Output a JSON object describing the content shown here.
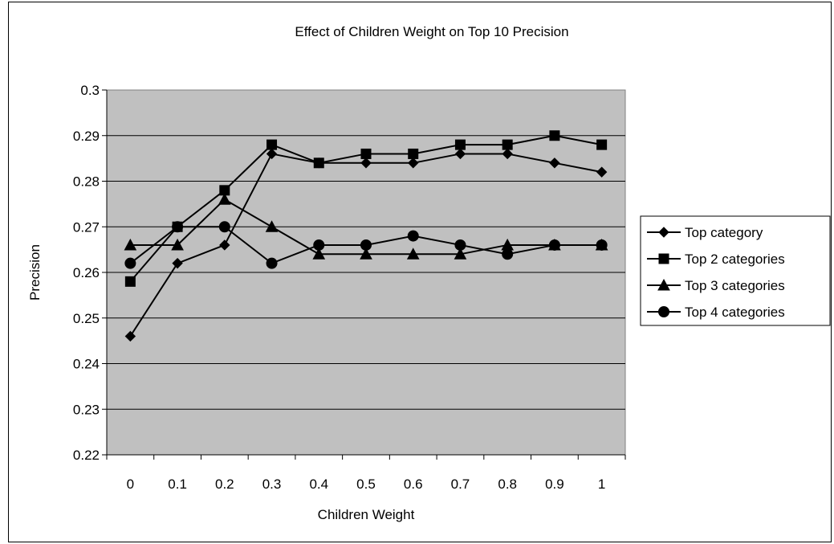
{
  "chart_data": {
    "type": "line",
    "title": "Effect of Children Weight on Top 10 Precision",
    "xlabel": "Children Weight",
    "ylabel": "Precision",
    "categories": [
      "0",
      "0.1",
      "0.2",
      "0.3",
      "0.4",
      "0.5",
      "0.6",
      "0.7",
      "0.8",
      "0.9",
      "1"
    ],
    "ylim": [
      0.22,
      0.3
    ],
    "yticks": [
      "0.22",
      "0.23",
      "0.24",
      "0.25",
      "0.26",
      "0.27",
      "0.28",
      "0.29",
      "0.3"
    ],
    "grid": true,
    "plot_background": "#c0c0c0",
    "line_color": "#000000",
    "legend_position": "right",
    "series": [
      {
        "name": "Top category",
        "marker": "diamond",
        "values": [
          0.246,
          0.262,
          0.266,
          0.286,
          0.284,
          0.284,
          0.284,
          0.286,
          0.286,
          0.284,
          0.282
        ]
      },
      {
        "name": "Top 2 categories",
        "marker": "square",
        "values": [
          0.258,
          0.27,
          0.278,
          0.288,
          0.284,
          0.286,
          0.286,
          0.288,
          0.288,
          0.29,
          0.288
        ]
      },
      {
        "name": "Top 3 categories",
        "marker": "triangle",
        "values": [
          0.266,
          0.266,
          0.276,
          0.27,
          0.264,
          0.264,
          0.264,
          0.264,
          0.266,
          0.266,
          0.266
        ]
      },
      {
        "name": "Top 4 categories",
        "marker": "circle",
        "values": [
          0.262,
          0.27,
          0.27,
          0.262,
          0.266,
          0.266,
          0.268,
          0.266,
          0.264,
          0.266,
          0.266
        ]
      }
    ]
  }
}
